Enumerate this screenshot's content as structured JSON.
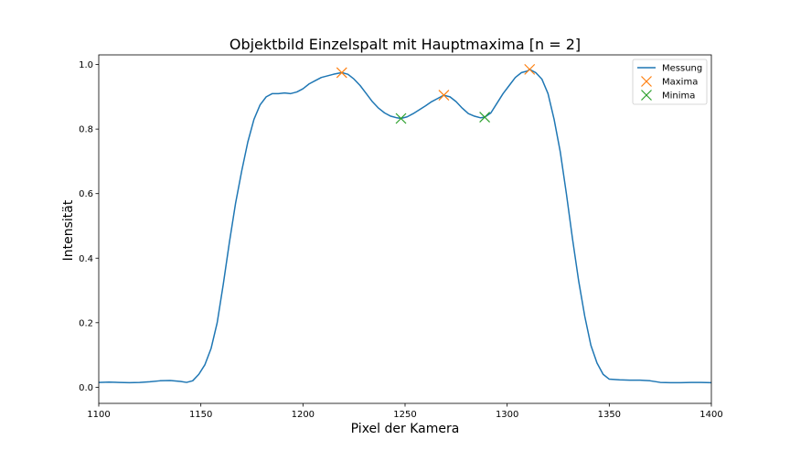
{
  "chart_data": {
    "type": "line",
    "title": "Objektbild Einzelspalt mit Hauptmaxima [n = 2]",
    "xlabel": "Pixel der Kamera",
    "ylabel": "Intensität",
    "xlim": [
      1100,
      1400
    ],
    "ylim": [
      -0.05,
      1.03
    ],
    "xticks": [
      1100,
      1150,
      1200,
      1250,
      1300,
      1350,
      1400
    ],
    "xtick_labels": [
      "1100",
      "1150",
      "1200",
      "1250",
      "1300",
      "1350",
      "1400"
    ],
    "yticks": [
      0.0,
      0.2,
      0.4,
      0.6,
      0.8,
      1.0
    ],
    "ytick_labels": [
      "0.0",
      "0.2",
      "0.4",
      "0.6",
      "0.8",
      "1.0"
    ],
    "grid": false,
    "legend_position": "top-right",
    "series": [
      {
        "name": "Messung",
        "kind": "line",
        "color": "#1f77b4",
        "x": [
          1100,
          1105,
          1110,
          1115,
          1120,
          1125,
          1130,
          1135,
          1140,
          1143,
          1146,
          1149,
          1152,
          1155,
          1158,
          1161,
          1164,
          1167,
          1170,
          1173,
          1176,
          1179,
          1182,
          1185,
          1188,
          1191,
          1194,
          1197,
          1200,
          1203,
          1206,
          1209,
          1212,
          1215,
          1219,
          1222,
          1225,
          1228,
          1231,
          1234,
          1237,
          1240,
          1243,
          1246,
          1248,
          1251,
          1254,
          1257,
          1260,
          1263,
          1266,
          1269,
          1272,
          1275,
          1278,
          1281,
          1284,
          1287,
          1289,
          1292,
          1295,
          1298,
          1301,
          1304,
          1307,
          1310,
          1311,
          1314,
          1317,
          1320,
          1323,
          1326,
          1329,
          1332,
          1335,
          1338,
          1341,
          1344,
          1347,
          1350,
          1355,
          1360,
          1365,
          1370,
          1375,
          1380,
          1385,
          1390,
          1395,
          1400
        ],
        "y": [
          0.015,
          0.016,
          0.015,
          0.014,
          0.015,
          0.017,
          0.02,
          0.021,
          0.018,
          0.015,
          0.02,
          0.04,
          0.07,
          0.12,
          0.2,
          0.32,
          0.45,
          0.57,
          0.67,
          0.76,
          0.83,
          0.875,
          0.9,
          0.91,
          0.91,
          0.912,
          0.91,
          0.915,
          0.925,
          0.94,
          0.95,
          0.96,
          0.965,
          0.97,
          0.975,
          0.97,
          0.955,
          0.935,
          0.91,
          0.885,
          0.865,
          0.85,
          0.84,
          0.835,
          0.833,
          0.838,
          0.848,
          0.86,
          0.872,
          0.885,
          0.895,
          0.905,
          0.9,
          0.885,
          0.865,
          0.848,
          0.84,
          0.835,
          0.837,
          0.85,
          0.88,
          0.91,
          0.935,
          0.96,
          0.975,
          0.98,
          0.985,
          0.975,
          0.955,
          0.91,
          0.83,
          0.73,
          0.6,
          0.46,
          0.33,
          0.22,
          0.13,
          0.075,
          0.04,
          0.025,
          0.023,
          0.022,
          0.022,
          0.02,
          0.015,
          0.014,
          0.014,
          0.015,
          0.015,
          0.014
        ]
      },
      {
        "name": "Maxima",
        "kind": "marker",
        "marker": "x",
        "color": "#ff7f0e",
        "x": [
          1219,
          1269,
          1311
        ],
        "y": [
          0.975,
          0.905,
          0.985
        ]
      },
      {
        "name": "Minima",
        "kind": "marker",
        "marker": "x",
        "color": "#2ca02c",
        "x": [
          1248,
          1289
        ],
        "y": [
          0.833,
          0.837
        ]
      }
    ]
  }
}
